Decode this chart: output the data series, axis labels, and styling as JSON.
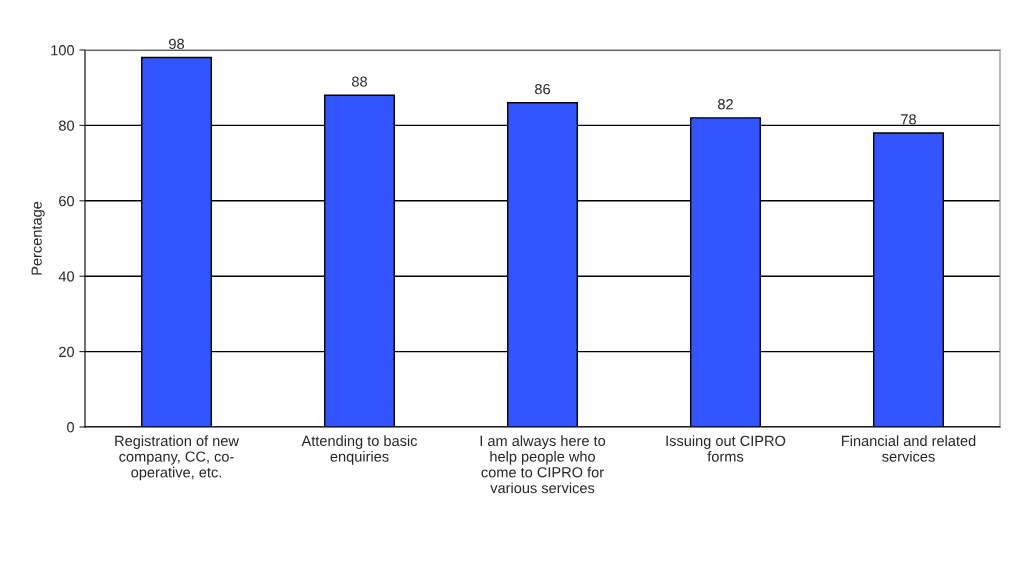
{
  "chart_data": {
    "type": "bar",
    "ylabel": "Percentage",
    "categories": [
      "Registration of new\ncompany, CC, co-\noperative, etc.",
      "Attending to basic\nenquiries",
      "I am always here to\nhelp people who\ncome to CIPRO for\nvarious services",
      "Issuing out CIPRO\nforms",
      "Financial and related\nservices"
    ],
    "values": [
      98,
      88,
      86,
      82,
      78
    ],
    "color": "#3355ff",
    "ylim": [
      0,
      100
    ],
    "yticks": [
      0,
      20,
      40,
      60,
      80,
      100
    ],
    "grid": "y",
    "data_labels": true,
    "legend": false
  }
}
